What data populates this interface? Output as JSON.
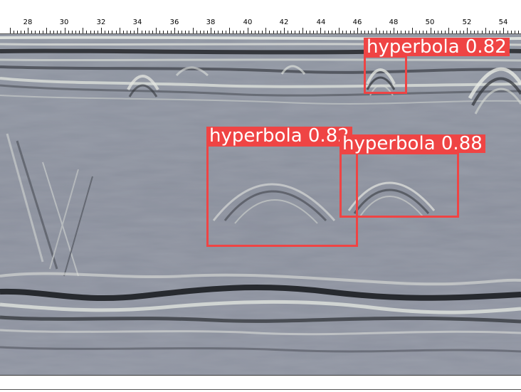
{
  "ruler": {
    "ticks": [
      "28",
      "30",
      "32",
      "34",
      "36",
      "38",
      "40",
      "42",
      "44",
      "46",
      "48",
      "50",
      "52",
      "54"
    ]
  },
  "detections": [
    {
      "label": "hyperbola 0.82",
      "color": "#ef4444"
    },
    {
      "label": "hyperbola 0.82",
      "color": "#ef4444"
    },
    {
      "label": "hyperbola 0.88",
      "color": "#ef4444"
    }
  ],
  "colors": {
    "background": "#8e93a0",
    "band_dark": "#202226",
    "band_light": "#e7ebe6",
    "box": "#ef4444"
  }
}
